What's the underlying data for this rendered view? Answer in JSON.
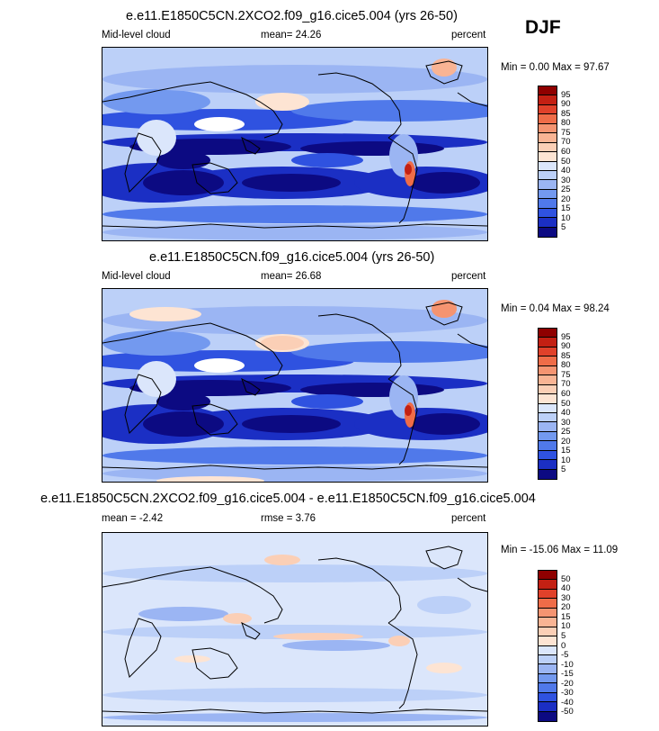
{
  "season": "DJF",
  "palette_abs": [
    "#0c0a82",
    "#1b2fc4",
    "#2f52e0",
    "#5079ea",
    "#7399ef",
    "#9bb5f3",
    "#bcd0f8",
    "#dbe6fb",
    "#ffffff",
    "#fde4d3",
    "#fbcfb6",
    "#f9b494",
    "#f59471",
    "#ef6c48",
    "#e0412a",
    "#c32013",
    "#8f0000"
  ],
  "palette_diff": [
    "#0c0a82",
    "#1b2fc4",
    "#2f52e0",
    "#5079ea",
    "#7399ef",
    "#9bb5f3",
    "#bcd0f8",
    "#dbe6fb",
    "#ffffff",
    "#fde4d3",
    "#fbcfb6",
    "#f9b494",
    "#f59471",
    "#ef6c48",
    "#e0412a",
    "#c32013",
    "#8f0000"
  ],
  "panels": [
    {
      "title": "e.e11.E1850C5CN.2XCO2.f09_g16.cice5.004 (yrs 26-50)",
      "left_label": "Mid-level cloud",
      "center_label": "mean=  24.26",
      "right_label": "percent",
      "minmax": "Min =   0.00 Max =  97.67",
      "levels": [
        "95",
        "90",
        "85",
        "80",
        "75",
        "70",
        "60",
        "50",
        "40",
        "30",
        "25",
        "20",
        "15",
        "10",
        "5"
      ]
    },
    {
      "title": "e.e11.E1850C5CN.f09_g16.cice5.004 (yrs 26-50)",
      "left_label": "Mid-level cloud",
      "center_label": "mean=  26.68",
      "right_label": "percent",
      "minmax": "Min =   0.04 Max =  98.24",
      "levels": [
        "95",
        "90",
        "85",
        "80",
        "75",
        "70",
        "60",
        "50",
        "40",
        "30",
        "25",
        "20",
        "15",
        "10",
        "5"
      ]
    },
    {
      "title": "e.e11.E1850C5CN.2XCO2.f09_g16.cice5.004 - e.e11.E1850C5CN.f09_g16.cice5.004",
      "left_label": "mean =  -2.42",
      "center_label": "rmse =   3.76",
      "right_label": "percent",
      "minmax": "Min = -15.06 Max =  11.09",
      "levels": [
        "50",
        "40",
        "30",
        "20",
        "15",
        "10",
        "5",
        "0",
        "-5",
        "-10",
        "-15",
        "-20",
        "-30",
        "-40",
        "-50"
      ]
    }
  ]
}
